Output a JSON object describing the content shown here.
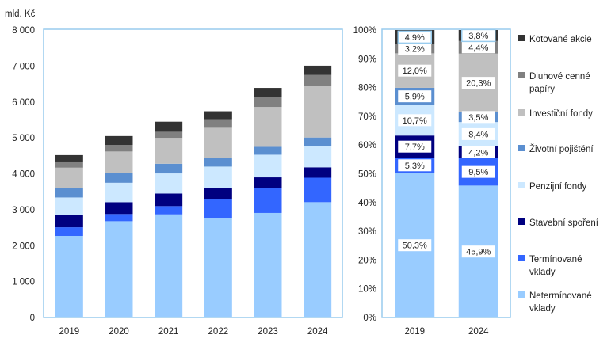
{
  "colors": {
    "Netermínované vklady": "#99ccff",
    "Termínované vklady": "#3366ff",
    "Stavební spoření": "#000080",
    "Penzijní fondy": "#cce8ff",
    "Životní pojištění": "#5b8fd0",
    "Investiční fondy": "#c0c0c0",
    "Dluhové cenné papíry": "#808080",
    "Kotované akcie": "#333333",
    "frame": "#99ccee"
  },
  "chart_data": [
    {
      "type": "bar",
      "stacked": true,
      "unit_label": "mld. Kč",
      "categories": [
        "2019",
        "2020",
        "2021",
        "2022",
        "2023",
        "2024"
      ],
      "ylim": [
        0,
        8000
      ],
      "yticks": [
        "0",
        "1 000",
        "2 000",
        "3 000",
        "4 000",
        "5 000",
        "6 000",
        "7 000",
        "8 000"
      ],
      "series": [
        {
          "name": "Netermínované vklady",
          "values": [
            2270,
            2680,
            2870,
            2760,
            2910,
            3210
          ]
        },
        {
          "name": "Termínované vklady",
          "values": [
            240,
            200,
            230,
            530,
            700,
            680
          ]
        },
        {
          "name": "Stavební spoření",
          "values": [
            350,
            330,
            350,
            310,
            290,
            290
          ]
        },
        {
          "name": "Penzijní fondy",
          "values": [
            480,
            540,
            560,
            600,
            630,
            590
          ]
        },
        {
          "name": "Životní pojištění",
          "values": [
            270,
            270,
            270,
            250,
            220,
            240
          ]
        },
        {
          "name": "Investiční fondy",
          "values": [
            560,
            600,
            720,
            830,
            1110,
            1430
          ]
        },
        {
          "name": "Dluhové cenné papíry",
          "values": [
            150,
            180,
            170,
            240,
            280,
            310
          ]
        },
        {
          "name": "Kotované akcie",
          "values": [
            200,
            250,
            280,
            220,
            250,
            260
          ]
        }
      ]
    },
    {
      "type": "bar",
      "stacked": true,
      "percent": true,
      "categories": [
        "2019",
        "2024"
      ],
      "ylim": [
        0,
        100
      ],
      "yticks": [
        "0%",
        "10%",
        "20%",
        "30%",
        "40%",
        "50%",
        "60%",
        "70%",
        "80%",
        "90%",
        "100%"
      ],
      "series": [
        {
          "name": "Netermínované vklady",
          "values": [
            50.3,
            45.9
          ],
          "labels": [
            "50,3%",
            "45,9%"
          ]
        },
        {
          "name": "Termínované vklady",
          "values": [
            5.3,
            9.5
          ],
          "labels": [
            "5,3%",
            "9,5%"
          ]
        },
        {
          "name": "Stavební spoření",
          "values": [
            7.7,
            4.2
          ],
          "labels": [
            "7,7%",
            "4,2%"
          ]
        },
        {
          "name": "Penzijní fondy",
          "values": [
            10.7,
            8.4
          ],
          "labels": [
            "10,7%",
            "8,4%"
          ]
        },
        {
          "name": "Životní pojištění",
          "values": [
            5.9,
            3.5
          ],
          "labels": [
            "5,9%",
            "3,5%"
          ]
        },
        {
          "name": "Investiční fondy",
          "values": [
            12.0,
            20.3
          ],
          "labels": [
            "12,0%",
            "20,3%"
          ]
        },
        {
          "name": "Dluhové cenné papíry",
          "values": [
            3.2,
            4.4
          ],
          "labels": [
            "3,2%",
            "4,4%"
          ]
        },
        {
          "name": "Kotované akcie",
          "values": [
            4.9,
            3.8
          ],
          "labels": [
            "4,9%",
            "3,8%"
          ]
        }
      ]
    }
  ],
  "legend": {
    "placement": "right",
    "items": [
      {
        "name": "Kotované akcie",
        "lines": [
          "Kotované akcie"
        ]
      },
      {
        "name": "Dluhové cenné papíry",
        "lines": [
          "Dluhové cenné",
          "papíry"
        ]
      },
      {
        "name": "Investiční fondy",
        "lines": [
          "Investiční fondy"
        ]
      },
      {
        "name": "Životní pojištění",
        "lines": [
          "Životní pojištění"
        ]
      },
      {
        "name": "Penzijní fondy",
        "lines": [
          "Penzijní fondy"
        ]
      },
      {
        "name": "Stavební spoření",
        "lines": [
          "Stavební spoření"
        ]
      },
      {
        "name": "Termínované vklady",
        "lines": [
          "Termínované",
          "vklady"
        ]
      },
      {
        "name": "Netermínované vklady",
        "lines": [
          "Netermínované",
          "vklady"
        ]
      }
    ]
  }
}
